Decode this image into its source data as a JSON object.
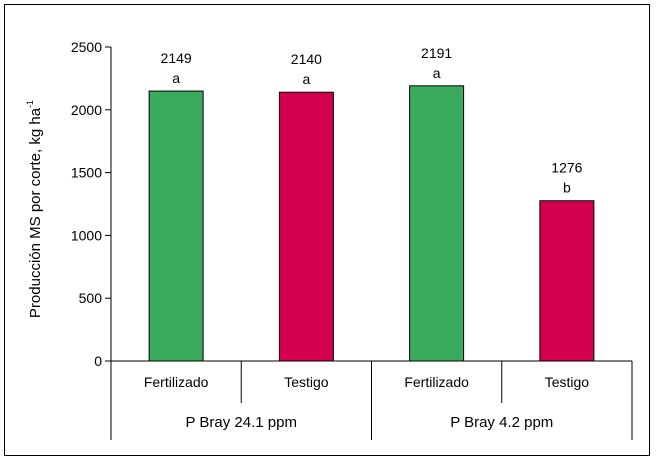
{
  "chart_data": {
    "type": "bar",
    "categories": [
      "Fertilizado",
      "Testigo",
      "Fertilizado",
      "Testigo"
    ],
    "groups": [
      {
        "label": "P Bray 24.1 ppm",
        "span": [
          0,
          1
        ]
      },
      {
        "label": "P Bray 4.2 ppm",
        "span": [
          2,
          3
        ]
      }
    ],
    "values": [
      2149,
      2140,
      2191,
      1276
    ],
    "value_labels": [
      "2149",
      "2140",
      "2191",
      "1276"
    ],
    "letters": [
      "a",
      "a",
      "a",
      "b"
    ],
    "bar_colors": [
      "#3aaa5c",
      "#d4004f",
      "#3aaa5c",
      "#d4004f"
    ],
    "ylabel": "Producción MS por corte, kg ha",
    "ylabel_superscript": "-1",
    "ylim": [
      0,
      2500
    ],
    "yticks": [
      0,
      500,
      1000,
      1500,
      2000,
      2500
    ],
    "grid": false
  }
}
